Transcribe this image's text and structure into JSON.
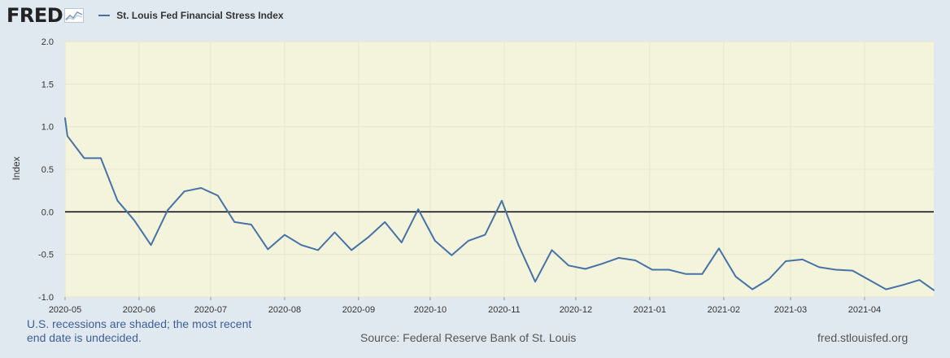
{
  "header": {
    "logo_text": "FRED",
    "logo_icon": "line-chart-icon",
    "legend_label": "St. Louis Fed Financial Stress Index",
    "series_color": "#4572a7"
  },
  "footer": {
    "recession_note_line1": "U.S. recessions are shaded; the most recent",
    "recession_note_line2": "end date is undecided.",
    "source": "Source: Federal Reserve Bank of St. Louis",
    "site": "fred.stlouisfed.org"
  },
  "chart_data": {
    "type": "line",
    "title": "",
    "xlabel": "",
    "ylabel": "Index",
    "ylim": [
      -1.0,
      2.0
    ],
    "yticks": [
      "2.0",
      "1.5",
      "1.0",
      "0.5",
      "0.0",
      "-0.5",
      "-1.0"
    ],
    "xticks": [
      {
        "date": "2020-05-01",
        "label": "2020-05"
      },
      {
        "date": "2020-06-01",
        "label": "2020-06"
      },
      {
        "date": "2020-07-01",
        "label": "2020-07"
      },
      {
        "date": "2020-08-01",
        "label": "2020-08"
      },
      {
        "date": "2020-09-01",
        "label": "2020-09"
      },
      {
        "date": "2020-10-01",
        "label": "2020-10"
      },
      {
        "date": "2020-11-01",
        "label": "2020-11"
      },
      {
        "date": "2020-12-01",
        "label": "2020-12"
      },
      {
        "date": "2021-01-01",
        "label": "2021-01"
      },
      {
        "date": "2021-02-01",
        "label": "2021-02"
      },
      {
        "date": "2021-03-01",
        "label": "2021-03"
      },
      {
        "date": "2021-04-01",
        "label": "2021-04"
      }
    ],
    "xlim": [
      "2020-05-01",
      "2021-04-30"
    ],
    "grid": true,
    "plot_background": "#f4f4dc",
    "zero_line": true,
    "series": [
      {
        "name": "St. Louis Fed Financial Stress Index",
        "color": "#4572a7",
        "points": [
          [
            "2020-05-01",
            1.1
          ],
          [
            "2020-05-02",
            0.89
          ],
          [
            "2020-05-09",
            0.63
          ],
          [
            "2020-05-16",
            0.63
          ],
          [
            "2020-05-23",
            0.13
          ],
          [
            "2020-05-30",
            -0.1
          ],
          [
            "2020-06-06",
            -0.39
          ],
          [
            "2020-06-13",
            0.02
          ],
          [
            "2020-06-20",
            0.24
          ],
          [
            "2020-06-27",
            0.28
          ],
          [
            "2020-07-04",
            0.19
          ],
          [
            "2020-07-11",
            -0.12
          ],
          [
            "2020-07-18",
            -0.15
          ],
          [
            "2020-07-25",
            -0.44
          ],
          [
            "2020-08-01",
            -0.27
          ],
          [
            "2020-08-08",
            -0.39
          ],
          [
            "2020-08-15",
            -0.45
          ],
          [
            "2020-08-22",
            -0.24
          ],
          [
            "2020-08-29",
            -0.45
          ],
          [
            "2020-09-05",
            -0.3
          ],
          [
            "2020-09-12",
            -0.12
          ],
          [
            "2020-09-19",
            -0.36
          ],
          [
            "2020-09-26",
            0.03
          ],
          [
            "2020-10-03",
            -0.34
          ],
          [
            "2020-10-10",
            -0.51
          ],
          [
            "2020-10-17",
            -0.34
          ],
          [
            "2020-10-24",
            -0.27
          ],
          [
            "2020-10-31",
            0.13
          ],
          [
            "2020-11-07",
            -0.39
          ],
          [
            "2020-11-14",
            -0.82
          ],
          [
            "2020-11-21",
            -0.45
          ],
          [
            "2020-11-28",
            -0.63
          ],
          [
            "2020-12-05",
            -0.67
          ],
          [
            "2020-12-12",
            -0.61
          ],
          [
            "2020-12-19",
            -0.54
          ],
          [
            "2020-12-26",
            -0.57
          ],
          [
            "2021-01-02",
            -0.68
          ],
          [
            "2021-01-09",
            -0.68
          ],
          [
            "2021-01-16",
            -0.73
          ],
          [
            "2021-01-23",
            -0.73
          ],
          [
            "2021-01-30",
            -0.43
          ],
          [
            "2021-02-06",
            -0.76
          ],
          [
            "2021-02-13",
            -0.91
          ],
          [
            "2021-02-20",
            -0.79
          ],
          [
            "2021-02-27",
            -0.58
          ],
          [
            "2021-03-06",
            -0.56
          ],
          [
            "2021-03-13",
            -0.65
          ],
          [
            "2021-03-20",
            -0.68
          ],
          [
            "2021-03-27",
            -0.69
          ],
          [
            "2021-04-03",
            -0.8
          ],
          [
            "2021-04-10",
            -0.91
          ],
          [
            "2021-04-17",
            -0.86
          ],
          [
            "2021-04-24",
            -0.8
          ],
          [
            "2021-04-30",
            -0.92
          ]
        ]
      }
    ]
  }
}
